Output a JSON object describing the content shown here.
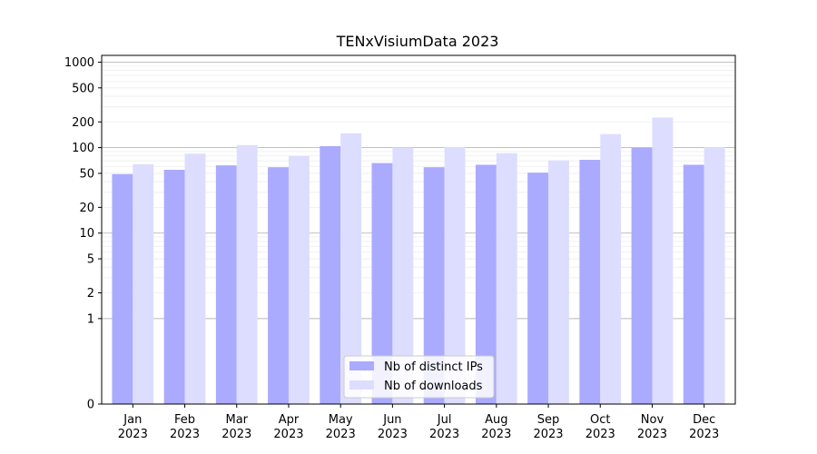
{
  "chart_data": {
    "type": "bar",
    "title": "TENxVisiumData 2023",
    "xlabel": "",
    "ylabel": "",
    "yscale": "symlog",
    "ylim": [
      0,
      1200
    ],
    "yticks": [
      0,
      1,
      2,
      5,
      10,
      20,
      50,
      100,
      200,
      500,
      1000
    ],
    "categories": [
      "Jan\n2023",
      "Feb\n2023",
      "Mar\n2023",
      "Apr\n2023",
      "May\n2023",
      "Jun\n2023",
      "Jul\n2023",
      "Aug\n2023",
      "Sep\n2023",
      "Oct\n2023",
      "Nov\n2023",
      "Dec\n2023"
    ],
    "series": [
      {
        "name": "Nb of distinct IPs",
        "color": "#aaaaff",
        "values": [
          49,
          55,
          62,
          59,
          104,
          66,
          59,
          63,
          51,
          72,
          99,
          63
        ]
      },
      {
        "name": "Nb of downloads",
        "color": "#ddddff",
        "values": [
          64,
          85,
          107,
          80,
          147,
          100,
          102,
          86,
          71,
          144,
          225,
          101
        ]
      }
    ],
    "grid": true,
    "legend_position": "bottom-center"
  }
}
